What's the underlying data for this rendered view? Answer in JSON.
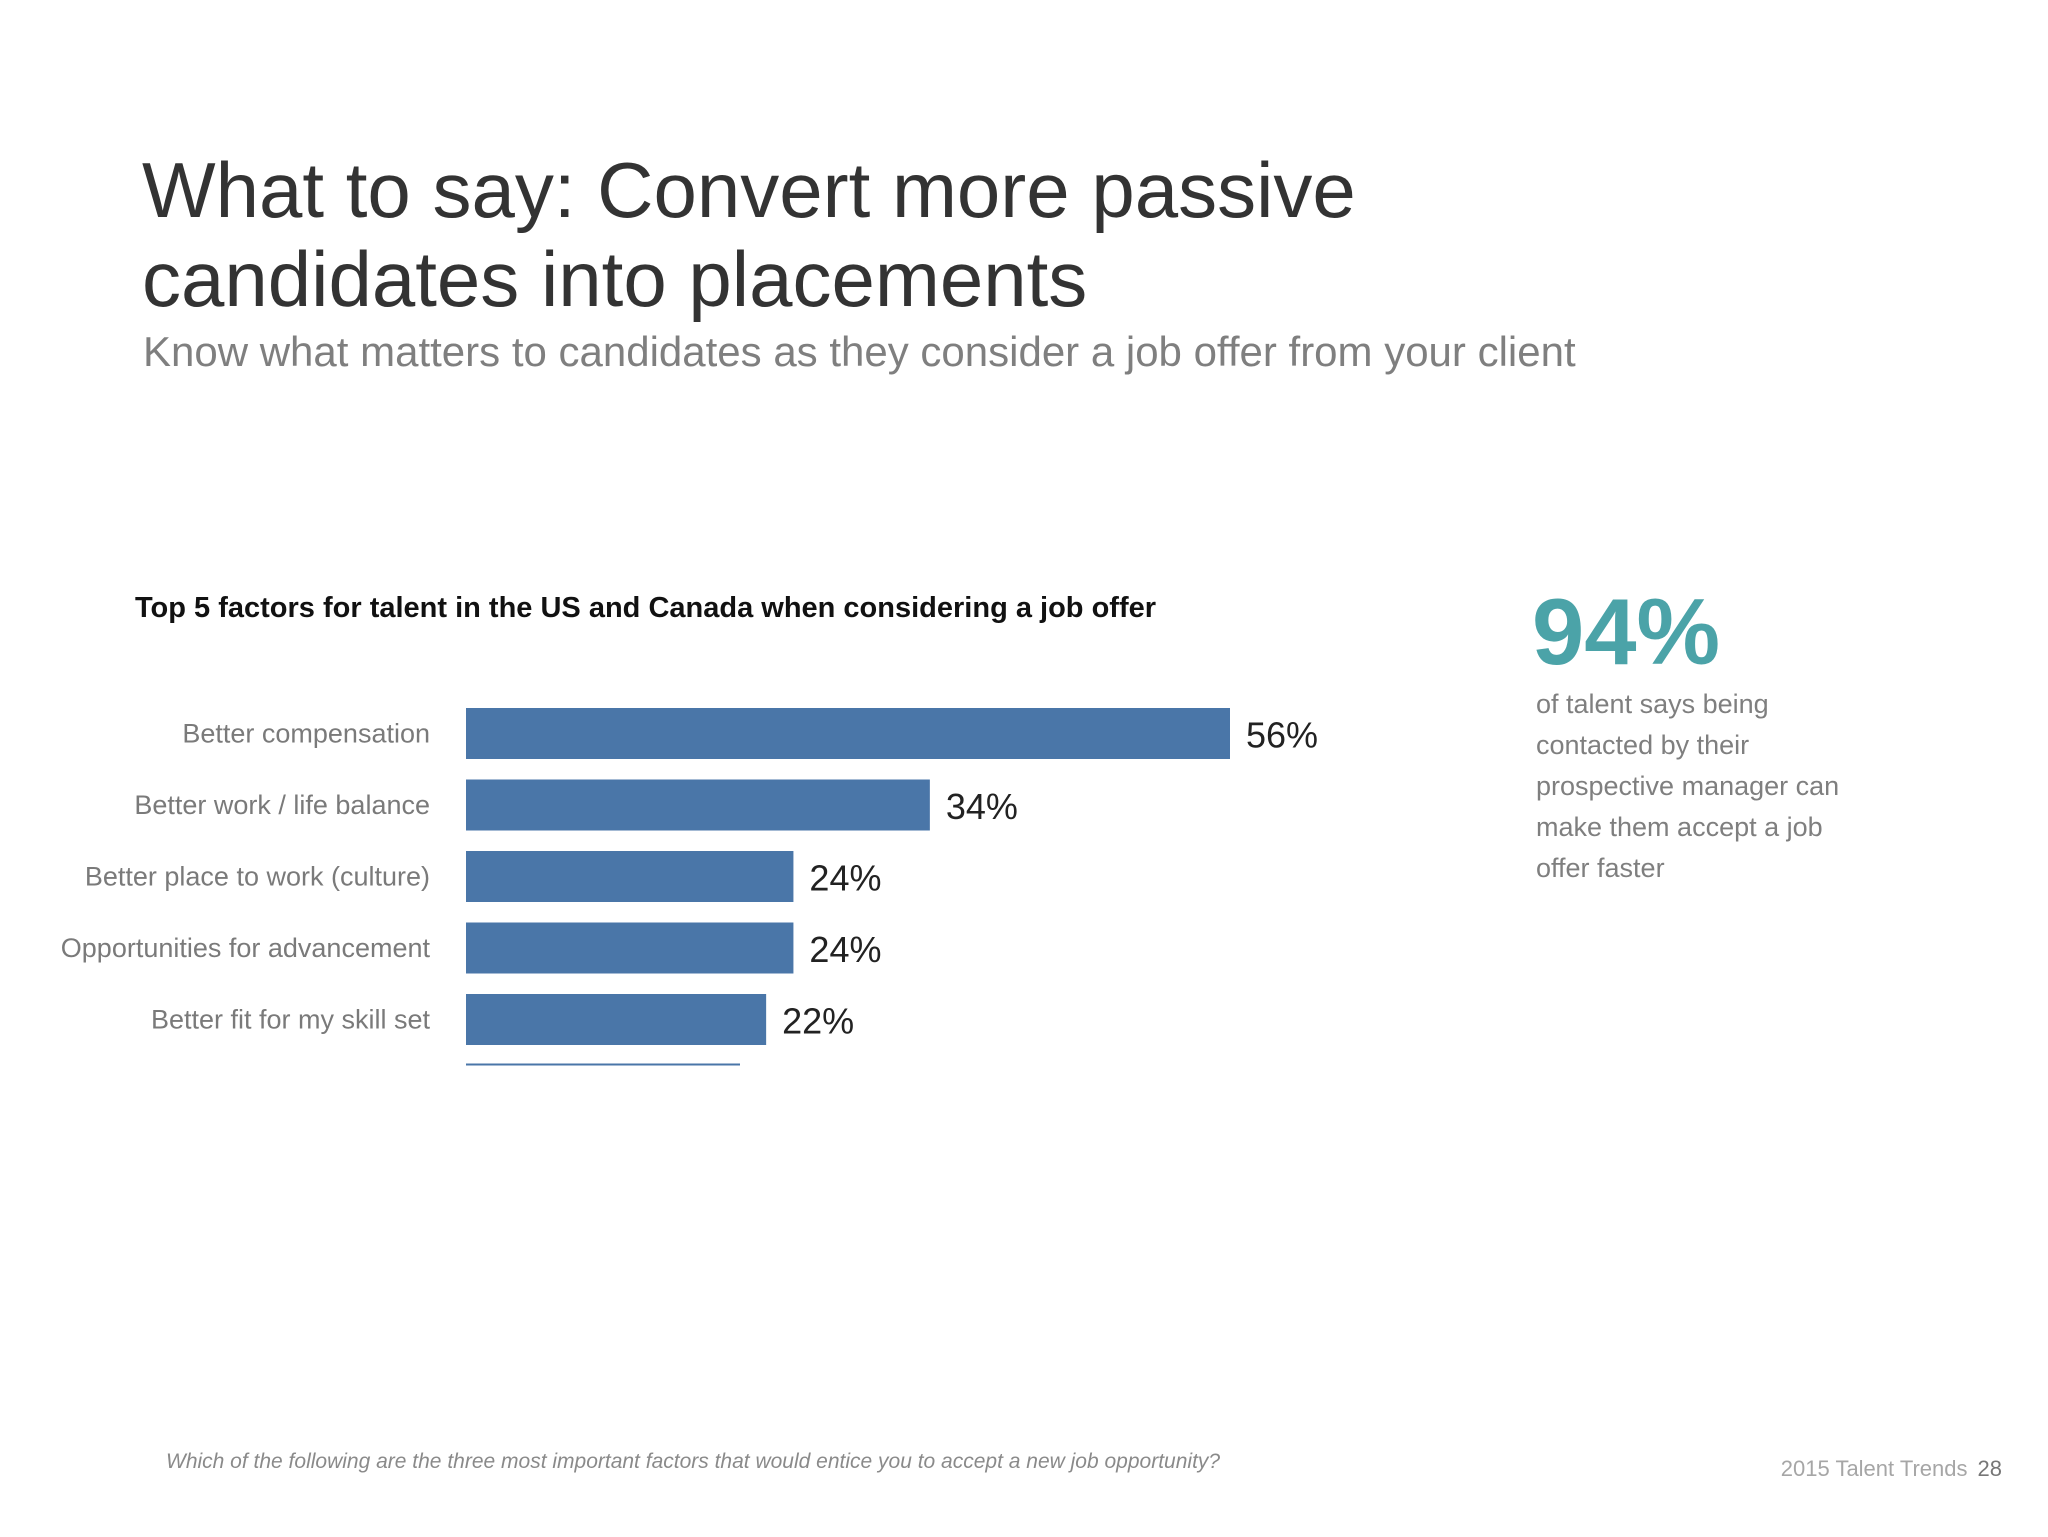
{
  "slide": {
    "title": "What to say: Convert more passive candidates into placements",
    "subtitle": "Know what matters to candidates as they consider a job offer from your client",
    "footnote": "Which of the following are the three most important factors that would entice you to accept a new job opportunity?",
    "footer": {
      "text": "2015 Talent Trends",
      "page": "28"
    }
  },
  "stat": {
    "value": "94%",
    "description": "of talent says being contacted by their prospective manager can make them accept a job offer faster",
    "color": "#4ba3a8"
  },
  "chart_data": {
    "type": "bar",
    "orientation": "horizontal",
    "title": "Top 5 factors for talent in the US and Canada when considering a job offer",
    "categories": [
      "Better compensation",
      "Better work / life balance",
      "Better place to work (culture)",
      "Opportunities for advancement",
      "Better fit for my skill set"
    ],
    "values": [
      56,
      34,
      24,
      24,
      22
    ],
    "value_labels": [
      "56%",
      "34%",
      "24%",
      "24%",
      "22%"
    ],
    "xlim": [
      0,
      56
    ],
    "grid": false,
    "legend": "none",
    "bar_color": "#4a76a8"
  }
}
